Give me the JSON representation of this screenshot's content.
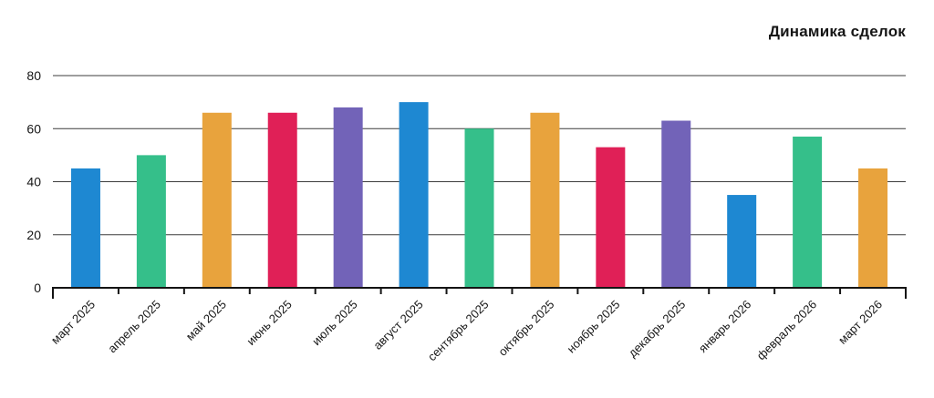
{
  "chart_data": {
    "type": "bar",
    "title": "Динамика сделок",
    "categories": [
      "март 2025",
      "апрель 2025",
      "май 2025",
      "июнь 2025",
      "июль 2025",
      "август 2025",
      "сентябрь 2025",
      "октябрь 2025",
      "ноябрь 2025",
      "декабрь 2025",
      "январь 2026",
      "февраль 2026",
      "март 2026"
    ],
    "values": [
      45,
      50,
      66,
      66,
      68,
      70,
      60,
      66,
      53,
      63,
      35,
      57,
      45
    ],
    "palette": [
      "#1e88d2",
      "#35bf8a",
      "#e8a33d",
      "#e02057",
      "#7263b8"
    ],
    "xlabel": "",
    "ylabel": "",
    "ylim": [
      0,
      80
    ],
    "yticks": [
      0,
      20,
      40,
      60,
      80
    ],
    "grid": true,
    "legend": false,
    "grid_color": "#3c3c3c",
    "axis_color": "#141414",
    "label_color": "#161616"
  }
}
